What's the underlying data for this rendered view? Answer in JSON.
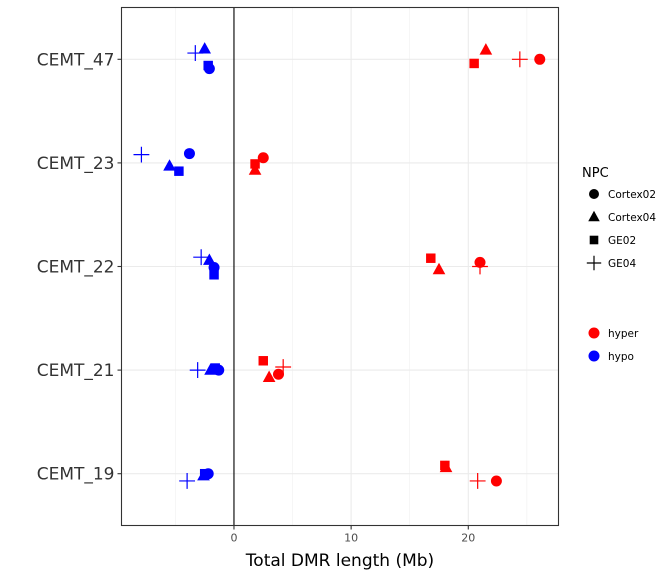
{
  "chart_data": {
    "type": "scatter",
    "xlabel": "Total DMR length (Mb)",
    "ylabel": "",
    "xlim": [
      -9.6,
      27.7
    ],
    "x_ticks": [
      0,
      10,
      20
    ],
    "categories": [
      "CEMT_19",
      "CEMT_21",
      "CEMT_22",
      "CEMT_23",
      "CEMT_47"
    ],
    "grid": true,
    "vertical_reference_line": 0,
    "legend_placement": "right",
    "shape_legend": {
      "title": "NPC",
      "items": [
        {
          "label": "Cortex02",
          "shape": "circle"
        },
        {
          "label": "Cortex04",
          "shape": "triangle"
        },
        {
          "label": "GE02",
          "shape": "square"
        },
        {
          "label": "GE04",
          "shape": "plus"
        }
      ]
    },
    "color_legend": {
      "title": "",
      "items": [
        {
          "label": "hyper",
          "color": "#ff0000"
        },
        {
          "label": "hypo",
          "color": "#0000ff"
        }
      ]
    },
    "series": [
      {
        "name": "hyper",
        "color": "#ff0000",
        "points": [
          {
            "category": "CEMT_47",
            "npc": "Cortex02",
            "x": 26.1,
            "jitter": 0.0
          },
          {
            "category": "CEMT_47",
            "npc": "Cortex04",
            "x": 21.5,
            "jitter": 0.09
          },
          {
            "category": "CEMT_47",
            "npc": "GE02",
            "x": 20.5,
            "jitter": -0.04
          },
          {
            "category": "CEMT_47",
            "npc": "GE04",
            "x": 24.4,
            "jitter": 0.0
          },
          {
            "category": "CEMT_23",
            "npc": "Cortex02",
            "x": 2.5,
            "jitter": 0.05
          },
          {
            "category": "CEMT_23",
            "npc": "Cortex04",
            "x": 1.8,
            "jitter": -0.07
          },
          {
            "category": "CEMT_23",
            "npc": "GE02",
            "x": 1.8,
            "jitter": -0.01
          },
          {
            "category": "CEMT_22",
            "npc": "Cortex02",
            "x": 21.0,
            "jitter": 0.04
          },
          {
            "category": "CEMT_22",
            "npc": "Cortex04",
            "x": 17.5,
            "jitter": -0.03
          },
          {
            "category": "CEMT_22",
            "npc": "GE02",
            "x": 16.8,
            "jitter": 0.08
          },
          {
            "category": "CEMT_22",
            "npc": "GE04",
            "x": 21.0,
            "jitter": 0.0
          },
          {
            "category": "CEMT_21",
            "npc": "Cortex02",
            "x": 3.8,
            "jitter": -0.04
          },
          {
            "category": "CEMT_21",
            "npc": "Cortex04",
            "x": 3.0,
            "jitter": -0.07
          },
          {
            "category": "CEMT_21",
            "npc": "GE02",
            "x": 2.5,
            "jitter": 0.09
          },
          {
            "category": "CEMT_21",
            "npc": "GE04",
            "x": 4.2,
            "jitter": 0.03
          },
          {
            "category": "CEMT_19",
            "npc": "Cortex02",
            "x": 22.4,
            "jitter": -0.07
          },
          {
            "category": "CEMT_19",
            "npc": "Cortex04",
            "x": 18.1,
            "jitter": 0.06
          },
          {
            "category": "CEMT_19",
            "npc": "GE02",
            "x": 18.0,
            "jitter": 0.08
          },
          {
            "category": "CEMT_19",
            "npc": "GE04",
            "x": 20.8,
            "jitter": -0.07
          }
        ]
      },
      {
        "name": "hypo",
        "color": "#0000ff",
        "points": [
          {
            "category": "CEMT_47",
            "npc": "Cortex02",
            "x": -2.1,
            "jitter": -0.09
          },
          {
            "category": "CEMT_47",
            "npc": "Cortex04",
            "x": -2.5,
            "jitter": 0.1
          },
          {
            "category": "CEMT_47",
            "npc": "GE02",
            "x": -2.2,
            "jitter": -0.06
          },
          {
            "category": "CEMT_47",
            "npc": "GE04",
            "x": -3.3,
            "jitter": 0.06
          },
          {
            "category": "CEMT_23",
            "npc": "Cortex02",
            "x": -3.8,
            "jitter": 0.09
          },
          {
            "category": "CEMT_23",
            "npc": "Cortex04",
            "x": -5.5,
            "jitter": -0.03
          },
          {
            "category": "CEMT_23",
            "npc": "GE02",
            "x": -4.7,
            "jitter": -0.08
          },
          {
            "category": "CEMT_23",
            "npc": "GE04",
            "x": -7.9,
            "jitter": 0.08
          },
          {
            "category": "CEMT_22",
            "npc": "Cortex02",
            "x": -1.7,
            "jitter": -0.01
          },
          {
            "category": "CEMT_22",
            "npc": "Cortex04",
            "x": -2.1,
            "jitter": 0.06
          },
          {
            "category": "CEMT_22",
            "npc": "GE02",
            "x": -1.7,
            "jitter": -0.08
          },
          {
            "category": "CEMT_22",
            "npc": "GE04",
            "x": -2.8,
            "jitter": 0.09
          },
          {
            "category": "CEMT_21",
            "npc": "Cortex02",
            "x": -1.3,
            "jitter": 0.0
          },
          {
            "category": "CEMT_21",
            "npc": "Cortex04",
            "x": -2.0,
            "jitter": 0.0
          },
          {
            "category": "CEMT_21",
            "npc": "GE02",
            "x": -1.6,
            "jitter": 0.02
          },
          {
            "category": "CEMT_21",
            "npc": "GE04",
            "x": -3.1,
            "jitter": 0.0
          },
          {
            "category": "CEMT_19",
            "npc": "Cortex02",
            "x": -2.2,
            "jitter": 0.0
          },
          {
            "category": "CEMT_19",
            "npc": "Cortex04",
            "x": -2.6,
            "jitter": -0.02
          },
          {
            "category": "CEMT_19",
            "npc": "GE02",
            "x": -2.5,
            "jitter": 0.0
          },
          {
            "category": "CEMT_19",
            "npc": "GE04",
            "x": -4.0,
            "jitter": -0.07
          }
        ]
      }
    ]
  }
}
